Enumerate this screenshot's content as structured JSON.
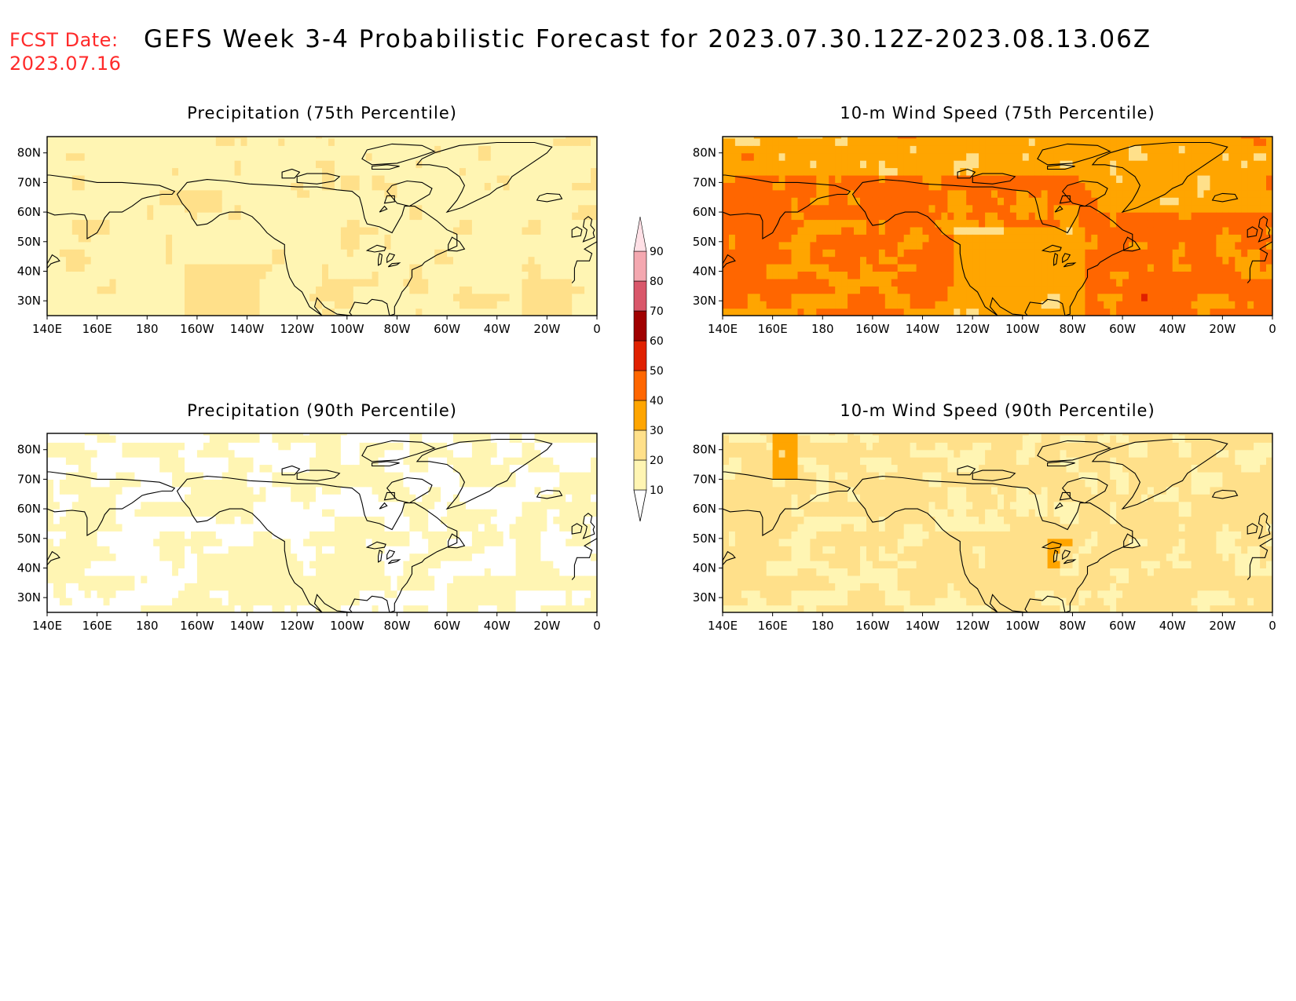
{
  "header": {
    "fcst_label": "FCST Date:",
    "fcst_date": "2023.07.16",
    "title": "GEFS Week 3-4 Probabilistic Forecast for 2023.07.30.12Z-2023.08.13.06Z"
  },
  "panels": [
    {
      "title": "Precipitation (75th Percentile)",
      "scheme": "precip75"
    },
    {
      "title": "10-m Wind Speed (75th Percentile)",
      "scheme": "wind75"
    },
    {
      "title": "Precipitation (90th Percentile)",
      "scheme": "precip90"
    },
    {
      "title": "10-m Wind Speed (90th Percentile)",
      "scheme": "wind90"
    }
  ],
  "axes": {
    "lon_labels": [
      "140E",
      "160E",
      "180",
      "160W",
      "140W",
      "120W",
      "100W",
      "80W",
      "60W",
      "40W",
      "20W",
      "0"
    ],
    "lat_labels": [
      "80N",
      "70N",
      "60N",
      "50N",
      "40N",
      "30N"
    ]
  },
  "colorbar": {
    "levels": [
      "10",
      "20",
      "30",
      "40",
      "50",
      "60",
      "70",
      "80",
      "90"
    ],
    "colors": [
      "#ffffff",
      "#fff5b3",
      "#ffe08a",
      "#ffa500",
      "#ff6600",
      "#e02000",
      "#a00000",
      "#d9576a",
      "#f4a8b0",
      "#ffe0e6"
    ]
  }
}
